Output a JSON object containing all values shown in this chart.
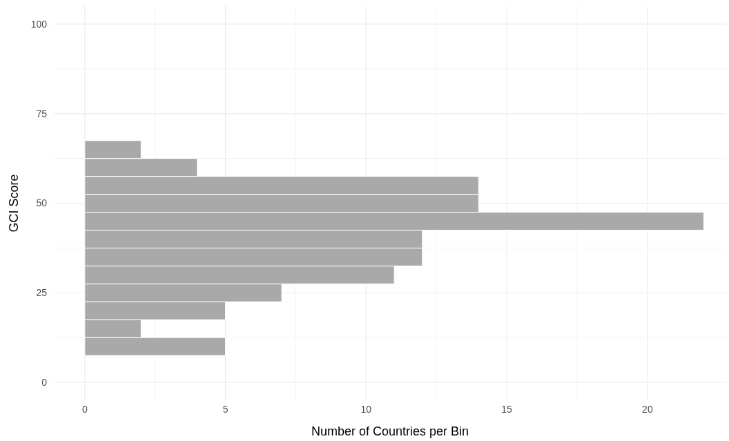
{
  "chart_data": {
    "type": "histogram",
    "orientation": "horizontal",
    "xlabel": "Number of Countries per Bin",
    "ylabel": "GCI Score",
    "bins": [
      7.5,
      12.5,
      17.5,
      22.5,
      27.5,
      32.5,
      37.5,
      42.5,
      47.5,
      52.5,
      57.5,
      62.5,
      67.5
    ],
    "values": [
      5,
      2,
      5,
      7,
      11,
      12,
      12,
      22,
      14,
      14,
      4,
      2
    ],
    "color": "#a9a9a9",
    "xlim": [
      -1.1,
      22.8
    ],
    "xticks": [
      0,
      {
        "value": 2.5,
        "label": null
      },
      5,
      {
        "value": 7.5,
        "label": null
      },
      10,
      {
        "value": 12.5,
        "label": null
      },
      15,
      {
        "value": 17.5,
        "label": null
      },
      20
    ],
    "ylim": [
      -5,
      105
    ],
    "yticks": [
      0,
      {
        "value": 12.5,
        "label": null
      },
      25,
      {
        "value": 37.5,
        "label": null
      },
      50,
      {
        "value": 62.5,
        "label": null
      },
      75,
      {
        "value": 87.5,
        "label": null
      },
      100
    ],
    "grid": true
  }
}
